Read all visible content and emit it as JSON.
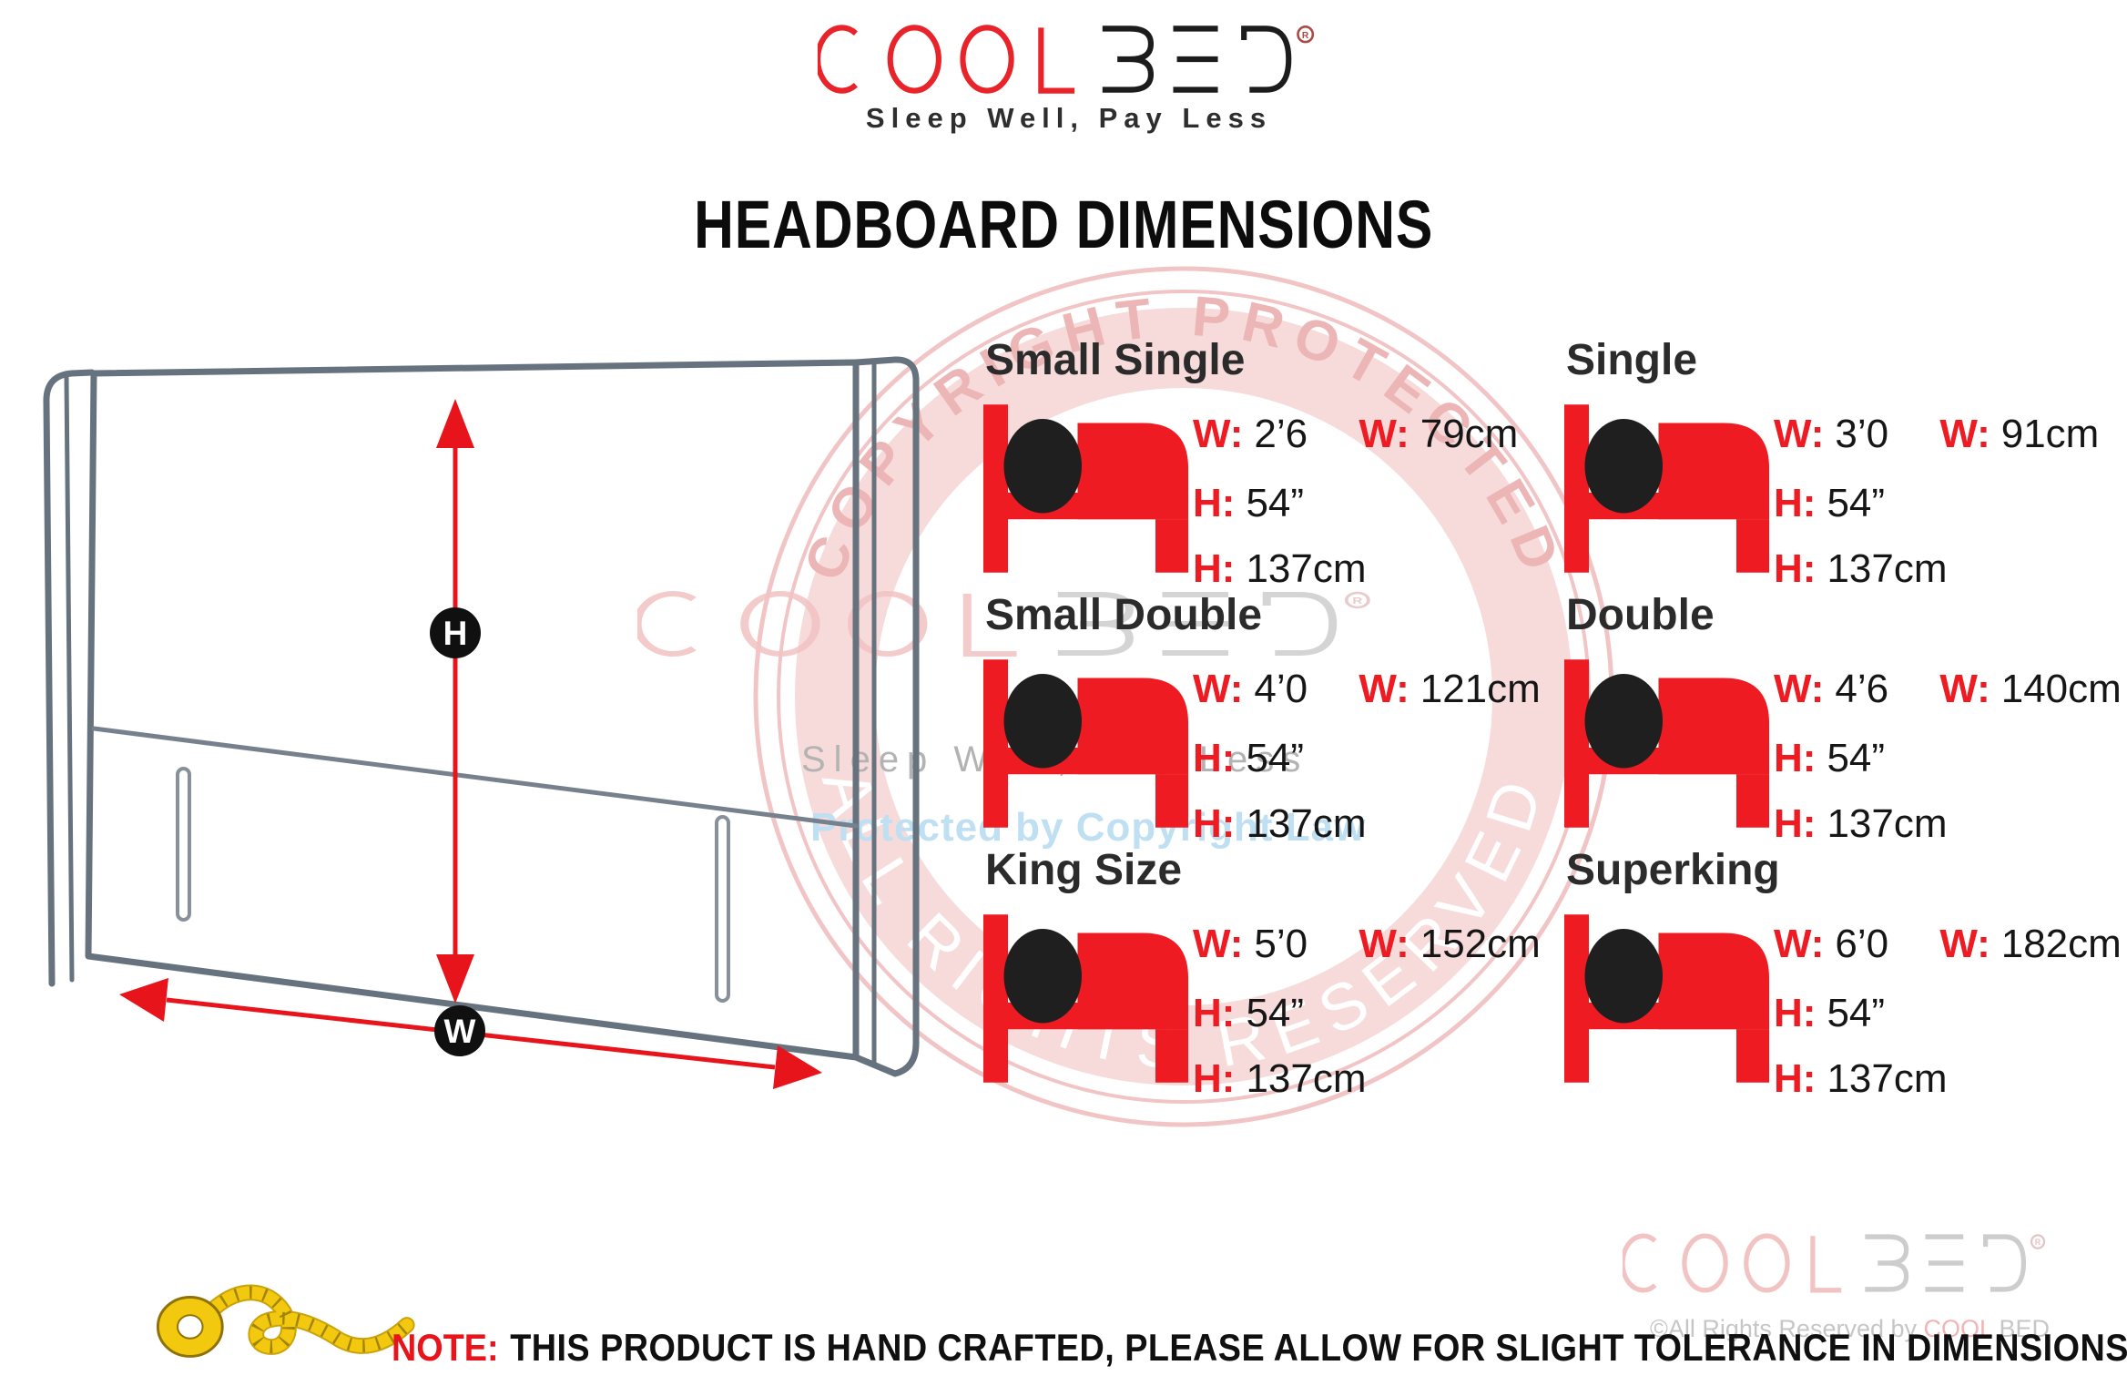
{
  "brand": {
    "cool_text": "COOL",
    "bed_text": "BED",
    "registered_mark": "R",
    "tagline": "Sleep Well, Pay Less"
  },
  "title": "HEADBOARD DIMENSIONS",
  "diagram": {
    "height_label": "H",
    "width_label": "W"
  },
  "dim_labels": {
    "w": "W:",
    "h": "H:"
  },
  "sizes": [
    {
      "name": "Small Single",
      "w_ft": "2’6",
      "w_cm": "79cm",
      "h_in": "54”",
      "h_cm": "137cm"
    },
    {
      "name": "Single",
      "w_ft": "3’0",
      "w_cm": "91cm",
      "h_in": "54”",
      "h_cm": "137cm"
    },
    {
      "name": "Small Double",
      "w_ft": "4’0",
      "w_cm": "121cm",
      "h_in": "54”",
      "h_cm": "137cm"
    },
    {
      "name": "Double",
      "w_ft": "4’6",
      "w_cm": "140cm",
      "h_in": "54”",
      "h_cm": "137cm"
    },
    {
      "name": "King Size",
      "w_ft": "5’0",
      "w_cm": "152cm",
      "h_in": "54”",
      "h_cm": "137cm"
    },
    {
      "name": "Superking",
      "w_ft": "6’0",
      "w_cm": "182cm",
      "h_in": "54”",
      "h_cm": "137cm"
    }
  ],
  "watermark": {
    "top_arc": "COPYRIGHT PROTECTED",
    "bottom_arc": "ALL RIGHTS RESERVED",
    "ghost_tagline": "Sleep Well, Pay Less",
    "center_line": "Protected by Copyright Law"
  },
  "footer": {
    "note_label": "NOTE:",
    "note_text": "THIS PRODUCT IS HAND CRAFTED, PLEASE ALLOW FOR SLIGHT TOLERANCE IN DIMENSIONS.",
    "copyright_prefix": "©All Rights Reserved by ",
    "copyright_brand": "COOL",
    "copyright_suffix": " BED"
  },
  "colors": {
    "accent_red": "#ee1b22",
    "brand_black": "#1c1c1c",
    "stamp_ring_pink": "#f1c5c5",
    "stamp_band_pink": "#f7dbdb",
    "protected_blue": "#bfdff2",
    "drawing_gray": "#67727f",
    "tape_yellow": "#f3c90f"
  }
}
